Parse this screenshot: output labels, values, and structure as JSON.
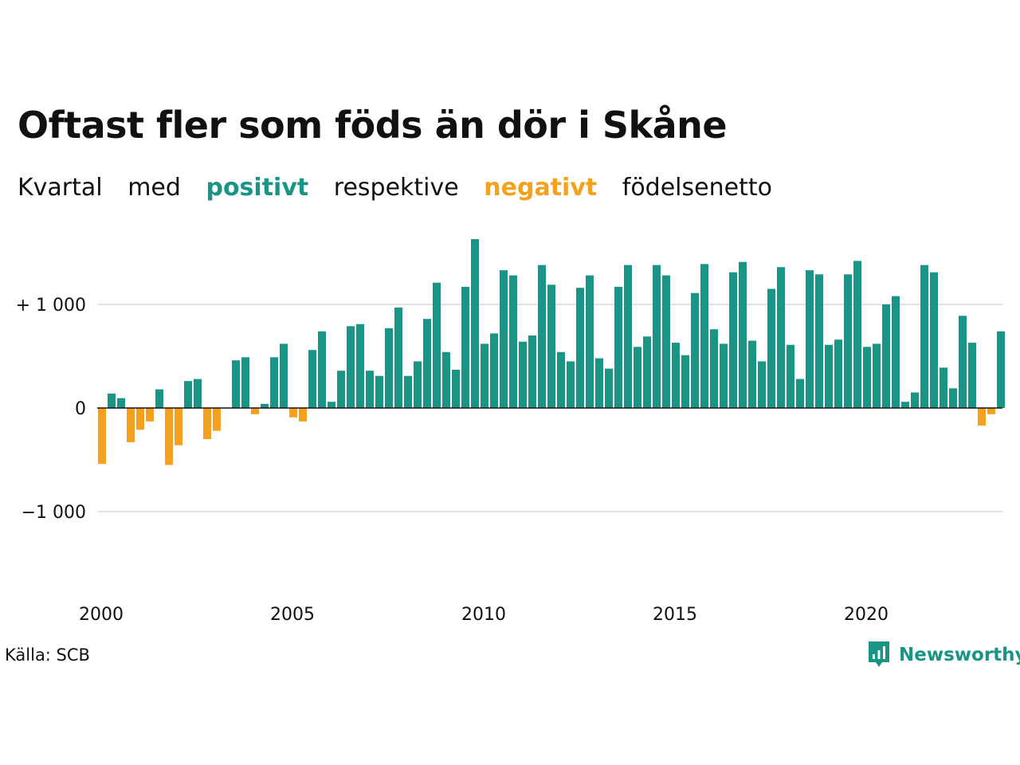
{
  "title": "Oftast fler som föds än dör i Skåne",
  "subtitle": {
    "w1": "Kvartal",
    "w2": "med",
    "positive": "positivt",
    "w3": "respektive",
    "negative": "negativt",
    "w4": "födelsenetto"
  },
  "source": "Källa: SCB",
  "brand": "Newsworthy",
  "colors": {
    "positive": "#1a9485",
    "negative": "#f5a11d",
    "grid": "#e2e2e2",
    "axis": "#111111"
  },
  "chart_data": {
    "type": "bar",
    "xlabel": "",
    "ylabel": "",
    "ylim": [
      -1700,
      1650
    ],
    "xlim": [
      2000,
      2024
    ],
    "y_ticks": [
      {
        "value": 1000,
        "label": "+ 1 000"
      },
      {
        "value": 0,
        "label": "0"
      },
      {
        "value": -1000,
        "label": "−1 000"
      }
    ],
    "x_ticks": [
      {
        "value": 2000,
        "label": "2000"
      },
      {
        "value": 2005,
        "label": "2005"
      },
      {
        "value": 2010,
        "label": "2010"
      },
      {
        "value": 2015,
        "label": "2015"
      },
      {
        "value": 2020,
        "label": "2020"
      }
    ],
    "grid": true,
    "start_year": 2000,
    "values": [
      -540,
      140,
      95,
      -330,
      -210,
      -130,
      180,
      -550,
      -360,
      260,
      280,
      -300,
      -220,
      0,
      460,
      490,
      -60,
      40,
      490,
      620,
      -90,
      -130,
      560,
      740,
      60,
      360,
      790,
      810,
      360,
      310,
      770,
      970,
      310,
      450,
      860,
      1210,
      540,
      370,
      1170,
      1630,
      620,
      720,
      1330,
      1280,
      640,
      700,
      1380,
      1190,
      540,
      450,
      1160,
      1280,
      480,
      380,
      1170,
      1380,
      590,
      690,
      1380,
      1280,
      630,
      510,
      1110,
      1390,
      760,
      620,
      1310,
      1410,
      650,
      450,
      1150,
      1360,
      610,
      280,
      1330,
      1290,
      610,
      660,
      1290,
      1420,
      590,
      620,
      1000,
      1080,
      60,
      150,
      1380,
      1310,
      390,
      190,
      890,
      630,
      -170,
      -60,
      740
    ]
  }
}
